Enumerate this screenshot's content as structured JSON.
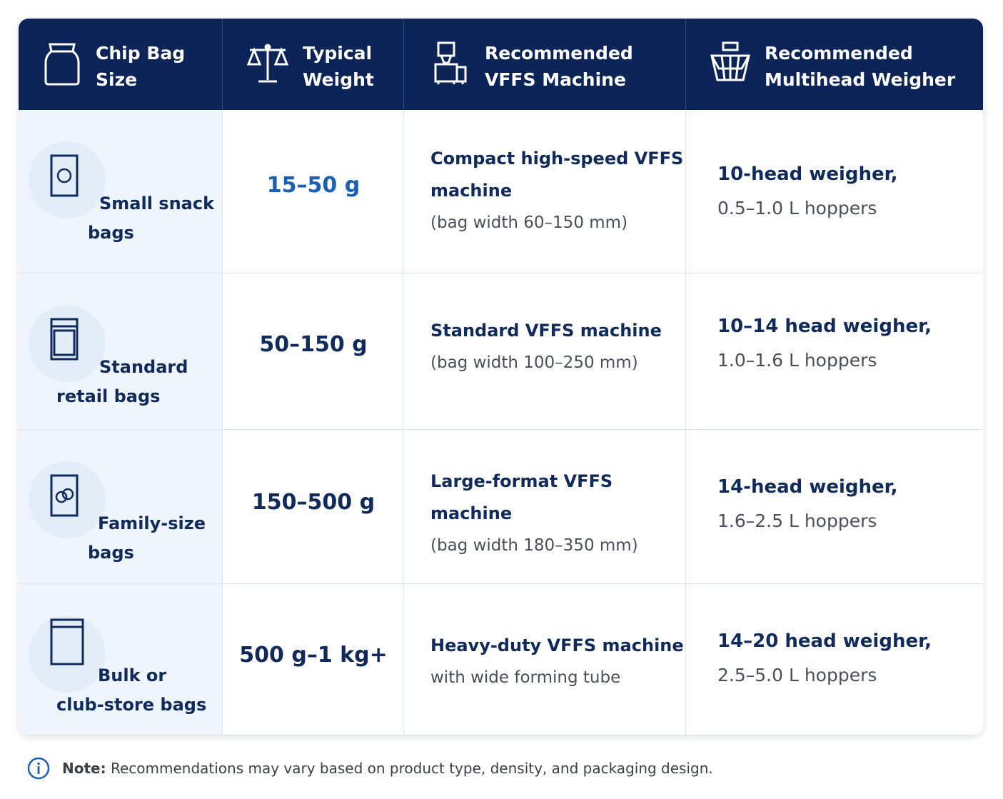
{
  "table": {
    "headers": [
      [
        "Chip Bag",
        "Size"
      ],
      [
        "Typical",
        "Weight"
      ],
      [
        "Recommended",
        "VFFS Machine"
      ],
      [
        "Recommended",
        "Multihead Weigher"
      ]
    ],
    "rows": [
      {
        "size": [
          "Small snack",
          "bags"
        ],
        "weight": "15–50 g",
        "machine": [
          "Compact high-speed VFFS",
          "machine"
        ],
        "machine_detail": "(bag width 60–150 mm)",
        "weigher": "10-head weigher,",
        "weigher_detail": "0.5–1.0 L hoppers"
      },
      {
        "size": [
          "Standard",
          "retail bags"
        ],
        "weight": "50–150 g",
        "machine": [
          "Standard VFFS machine"
        ],
        "machine_detail": "(bag width 100–250 mm)",
        "weigher": "10–14 head weigher,",
        "weigher_detail": "1.0–1.6 L hoppers"
      },
      {
        "size": [
          "Family-size",
          "bags"
        ],
        "weight": "150–500 g",
        "machine": [
          "Large-format VFFS machine"
        ],
        "machine_detail": "(bag width 180–350 mm)",
        "weigher": "14-head weigher,",
        "weigher_detail": "1.6–2.5 L hoppers"
      },
      {
        "size": [
          "Bulk or",
          "club-store bags"
        ],
        "weight": "500 g–1 kg+",
        "machine": [
          "Heavy-duty VFFS machine"
        ],
        "machine_detail": "with wide forming tube",
        "weigher": "14–20 head weigher,",
        "weigher_detail": "2.5–5.0 L hoppers"
      }
    ]
  },
  "note": {
    "label": "Note:",
    "text": "Recommendations may vary based on product type, density, and packaging design."
  }
}
